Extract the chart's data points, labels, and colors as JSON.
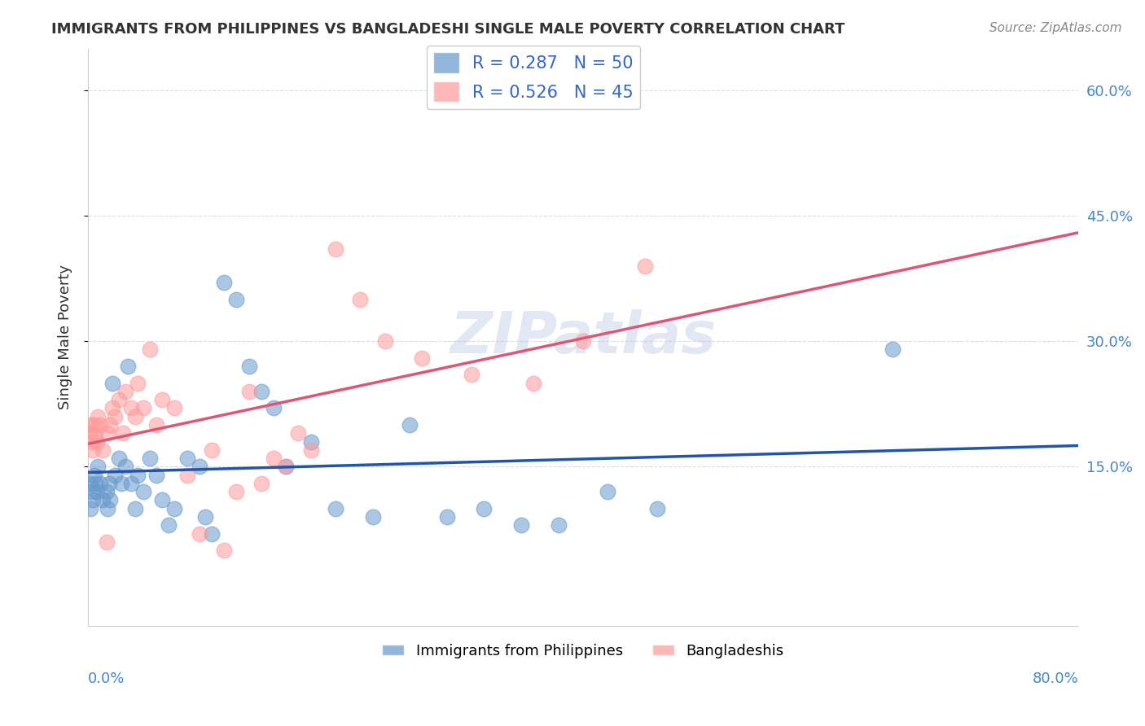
{
  "title": "IMMIGRANTS FROM PHILIPPINES VS BANGLADESHI SINGLE MALE POVERTY CORRELATION CHART",
  "source": "Source: ZipAtlas.com",
  "ylabel": "Single Male Poverty",
  "ytick_labels": [
    "15.0%",
    "30.0%",
    "45.0%",
    "60.0%"
  ],
  "ytick_values": [
    0.15,
    0.3,
    0.45,
    0.6
  ],
  "xlim": [
    0.0,
    0.8
  ],
  "ylim": [
    -0.04,
    0.65
  ],
  "watermark": "ZIPatlas",
  "legend1_label": "R = 0.287   N = 50",
  "legend2_label": "R = 0.526   N = 45",
  "blue_color": "#6699CC",
  "pink_color": "#FF9999",
  "line_blue": "#2255AA",
  "line_pink": "#DD5577",
  "blue_points_x": [
    0.001,
    0.002,
    0.003,
    0.004,
    0.005,
    0.006,
    0.007,
    0.008,
    0.01,
    0.012,
    0.015,
    0.016,
    0.017,
    0.018,
    0.02,
    0.022,
    0.025,
    0.027,
    0.03,
    0.032,
    0.035,
    0.038,
    0.04,
    0.045,
    0.05,
    0.055,
    0.06,
    0.065,
    0.07,
    0.08,
    0.09,
    0.095,
    0.1,
    0.11,
    0.12,
    0.13,
    0.14,
    0.15,
    0.16,
    0.18,
    0.2,
    0.23,
    0.26,
    0.29,
    0.32,
    0.35,
    0.38,
    0.42,
    0.46,
    0.65
  ],
  "blue_points_y": [
    0.13,
    0.1,
    0.12,
    0.11,
    0.14,
    0.13,
    0.12,
    0.15,
    0.13,
    0.11,
    0.12,
    0.1,
    0.13,
    0.11,
    0.25,
    0.14,
    0.16,
    0.13,
    0.15,
    0.27,
    0.13,
    0.1,
    0.14,
    0.12,
    0.16,
    0.14,
    0.11,
    0.08,
    0.1,
    0.16,
    0.15,
    0.09,
    0.07,
    0.37,
    0.35,
    0.27,
    0.24,
    0.22,
    0.15,
    0.18,
    0.1,
    0.09,
    0.2,
    0.09,
    0.1,
    0.08,
    0.08,
    0.12,
    0.1,
    0.29
  ],
  "pink_points_x": [
    0.001,
    0.002,
    0.003,
    0.004,
    0.005,
    0.006,
    0.007,
    0.008,
    0.01,
    0.012,
    0.015,
    0.016,
    0.018,
    0.02,
    0.022,
    0.025,
    0.028,
    0.03,
    0.035,
    0.038,
    0.04,
    0.045,
    0.05,
    0.055,
    0.06,
    0.07,
    0.08,
    0.09,
    0.1,
    0.11,
    0.12,
    0.13,
    0.14,
    0.15,
    0.16,
    0.17,
    0.18,
    0.2,
    0.22,
    0.24,
    0.27,
    0.31,
    0.36,
    0.4,
    0.45
  ],
  "pink_points_y": [
    0.19,
    0.2,
    0.18,
    0.17,
    0.2,
    0.19,
    0.18,
    0.21,
    0.2,
    0.17,
    0.06,
    0.19,
    0.2,
    0.22,
    0.21,
    0.23,
    0.19,
    0.24,
    0.22,
    0.21,
    0.25,
    0.22,
    0.29,
    0.2,
    0.23,
    0.22,
    0.14,
    0.07,
    0.17,
    0.05,
    0.12,
    0.24,
    0.13,
    0.16,
    0.15,
    0.19,
    0.17,
    0.41,
    0.35,
    0.3,
    0.28,
    0.26,
    0.25,
    0.3,
    0.39
  ],
  "background_color": "#FFFFFF",
  "grid_color": "#DDDDDD"
}
